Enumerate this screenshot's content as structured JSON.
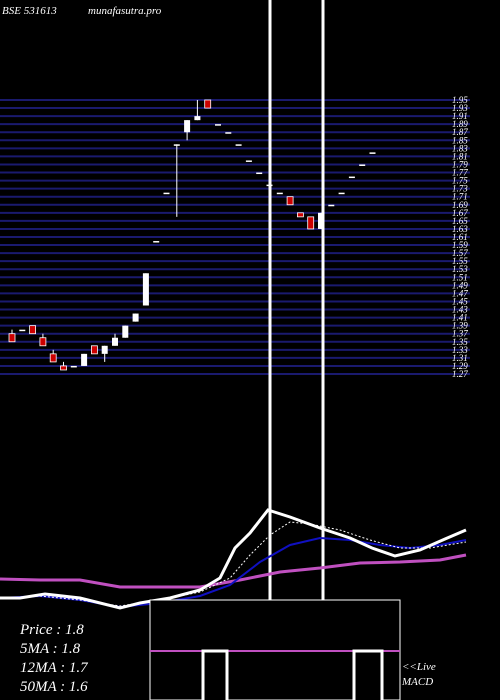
{
  "header": {
    "symbol_text": "BSE 531613",
    "site_text": "munafasutra.pro"
  },
  "stats": [
    {
      "label": "Price",
      "value": "1.8"
    },
    {
      "label": "5MA",
      "value": "1.8"
    },
    {
      "label": "12MA",
      "value": "1.7"
    },
    {
      "label": "50MA",
      "value": "1.6"
    }
  ],
  "macd_label": {
    "line1": "<<Live",
    "line2": "MACD"
  },
  "colors": {
    "background": "#000000",
    "price_grid": "#1a1a6e",
    "bull_candle": "#ffffff",
    "bear_candle": "#cc0000",
    "ma_white": "#ffffff",
    "ma_blue": "#1010c0",
    "ma_magenta": "#c050c0",
    "ma_dotted": "#ffffff"
  },
  "chart_data": {
    "type": "candlestick",
    "price_levels": [
      "1.95",
      "1.93",
      "1.91",
      "1.89",
      "1.87",
      "1.85",
      "1.83",
      "1.81",
      "1.79",
      "1.77",
      "1.75",
      "1.73",
      "1.71",
      "1.69",
      "1.67",
      "1.65",
      "1.63",
      "1.61",
      "1.59",
      "1.57",
      "1.55",
      "1.53",
      "1.51",
      "1.49",
      "1.47",
      "1.45",
      "1.43",
      "1.41",
      "1.39",
      "1.37",
      "1.35",
      "1.33",
      "1.31",
      "1.29",
      "1.27"
    ],
    "candles": [
      {
        "o": 1.37,
        "h": 1.38,
        "l": 1.35,
        "c": 1.35
      },
      {
        "o": 1.38,
        "h": 1.38,
        "l": 1.38,
        "c": 1.38
      },
      {
        "o": 1.39,
        "h": 1.39,
        "l": 1.37,
        "c": 1.37
      },
      {
        "o": 1.36,
        "h": 1.37,
        "l": 1.34,
        "c": 1.34
      },
      {
        "o": 1.32,
        "h": 1.33,
        "l": 1.3,
        "c": 1.3
      },
      {
        "o": 1.29,
        "h": 1.3,
        "l": 1.28,
        "c": 1.28
      },
      {
        "o": 1.29,
        "h": 1.29,
        "l": 1.29,
        "c": 1.29
      },
      {
        "o": 1.29,
        "h": 1.32,
        "l": 1.29,
        "c": 1.32
      },
      {
        "o": 1.34,
        "h": 1.34,
        "l": 1.32,
        "c": 1.32
      },
      {
        "o": 1.32,
        "h": 1.34,
        "l": 1.3,
        "c": 1.34
      },
      {
        "o": 1.34,
        "h": 1.37,
        "l": 1.34,
        "c": 1.36
      },
      {
        "o": 1.36,
        "h": 1.39,
        "l": 1.36,
        "c": 1.39
      },
      {
        "o": 1.4,
        "h": 1.42,
        "l": 1.4,
        "c": 1.42
      },
      {
        "o": 1.44,
        "h": 1.52,
        "l": 1.44,
        "c": 1.52
      },
      {
        "o": 1.6,
        "h": 1.6,
        "l": 1.6,
        "c": 1.6
      },
      {
        "o": 1.72,
        "h": 1.72,
        "l": 1.72,
        "c": 1.72
      },
      {
        "o": 1.84,
        "h": 1.84,
        "l": 1.66,
        "c": 1.84
      },
      {
        "o": 1.87,
        "h": 1.9,
        "l": 1.85,
        "c": 1.9
      },
      {
        "o": 1.9,
        "h": 1.95,
        "l": 1.9,
        "c": 1.91
      },
      {
        "o": 1.95,
        "h": 1.95,
        "l": 1.93,
        "c": 1.93
      },
      {
        "o": 1.89,
        "h": 1.89,
        "l": 1.89,
        "c": 1.89
      },
      {
        "o": 1.87,
        "h": 1.87,
        "l": 1.87,
        "c": 1.87
      },
      {
        "o": 1.84,
        "h": 1.84,
        "l": 1.84,
        "c": 1.84
      },
      {
        "o": 1.8,
        "h": 1.8,
        "l": 1.8,
        "c": 1.8
      },
      {
        "o": 1.77,
        "h": 1.77,
        "l": 1.77,
        "c": 1.77
      },
      {
        "o": 1.74,
        "h": 1.74,
        "l": 1.74,
        "c": 1.74
      },
      {
        "o": 1.72,
        "h": 1.72,
        "l": 1.72,
        "c": 1.72
      },
      {
        "o": 1.71,
        "h": 1.71,
        "l": 1.69,
        "c": 1.69
      },
      {
        "o": 1.67,
        "h": 1.67,
        "l": 1.66,
        "c": 1.66
      },
      {
        "o": 1.66,
        "h": 1.66,
        "l": 1.63,
        "c": 1.63
      },
      {
        "o": 1.63,
        "h": 1.67,
        "l": 1.63,
        "c": 1.67
      },
      {
        "o": 1.69,
        "h": 1.69,
        "l": 1.69,
        "c": 1.69
      },
      {
        "o": 1.72,
        "h": 1.72,
        "l": 1.72,
        "c": 1.72
      },
      {
        "o": 1.76,
        "h": 1.76,
        "l": 1.76,
        "c": 1.76
      },
      {
        "o": 1.79,
        "h": 1.79,
        "l": 1.79,
        "c": 1.79
      },
      {
        "o": 1.82,
        "h": 1.82,
        "l": 1.82,
        "c": 1.82
      }
    ],
    "ylim": [
      1.27,
      1.95
    ],
    "grid": true
  }
}
